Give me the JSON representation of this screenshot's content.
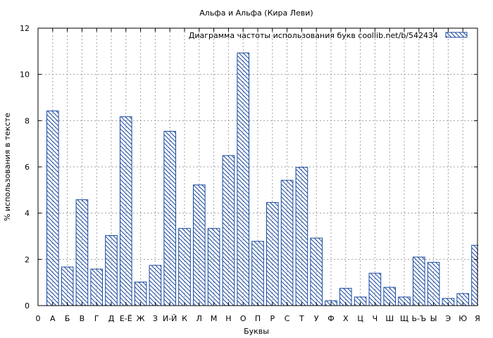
{
  "chart_data": {
    "type": "bar",
    "title": "Альфа и Альфа (Кира Леви)",
    "xlabel": "Буквы",
    "ylabel": "% использования в тексте",
    "ylim": [
      0,
      12
    ],
    "yticks": [
      0,
      2,
      4,
      6,
      8,
      10,
      12
    ],
    "grid": true,
    "legend_position": "top-right",
    "categories": [
      "А",
      "Б",
      "В",
      "Г",
      "Д",
      "Е-Ё",
      "Ж",
      "З",
      "И-Й",
      "К",
      "Л",
      "М",
      "Н",
      "О",
      "П",
      "Р",
      "С",
      "Т",
      "У",
      "Ф",
      "Х",
      "Ц",
      "Ч",
      "Ш",
      "Щ",
      "Ь-Ъ",
      "Ы",
      "Э",
      "Ю",
      "Я"
    ],
    "xtick_labels": [
      "0",
      "А",
      "Б",
      "В",
      "Г",
      "Д",
      "Е-Ё",
      "Ж",
      "З",
      "И-Й",
      "К",
      "Л",
      "М",
      "Н",
      "О",
      "П",
      "Р",
      "С",
      "Т",
      "У",
      "Ф",
      "Х",
      "Ц",
      "Ч",
      "Ш",
      "Щ",
      "Ь-Ъ",
      "Ы",
      "Э",
      "Ю",
      "Я"
    ],
    "series": [
      {
        "name": "Диаграмма частоты использования букв  coollib.net/b/542434",
        "values": [
          8.42,
          1.67,
          4.58,
          1.58,
          3.03,
          8.17,
          1.02,
          1.74,
          7.54,
          3.34,
          5.22,
          3.34,
          6.49,
          10.93,
          2.78,
          4.46,
          5.42,
          5.98,
          2.92,
          0.21,
          0.75,
          0.37,
          1.4,
          0.79,
          0.37,
          2.1,
          1.87,
          0.31,
          0.52,
          2.61
        ]
      }
    ],
    "colors": {
      "bar_stroke": "#1a4aa0",
      "hatch": "#1a4aa0",
      "grid": "#a0a0a0",
      "axis": "#000000"
    }
  }
}
